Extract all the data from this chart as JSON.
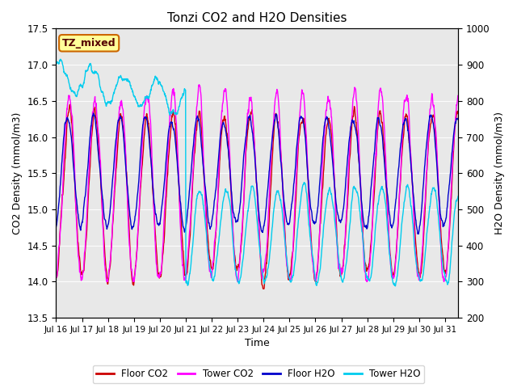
{
  "title": "Tonzi CO2 and H2O Densities",
  "xlabel": "Time",
  "ylabel_left": "CO2 Density (mmol/m3)",
  "ylabel_right": "H2O Density (mmol/m3)",
  "ylim_left": [
    13.5,
    17.5
  ],
  "ylim_right": [
    200,
    1000
  ],
  "yticks_left": [
    13.5,
    14.0,
    14.5,
    15.0,
    15.5,
    16.0,
    16.5,
    17.0,
    17.5
  ],
  "yticks_right": [
    200,
    300,
    400,
    500,
    600,
    700,
    800,
    900,
    1000
  ],
  "n_days": 15.5,
  "n_pts": 1488,
  "x_tick_days": [
    0,
    1,
    2,
    3,
    4,
    5,
    6,
    7,
    8,
    9,
    10,
    11,
    12,
    13,
    14,
    15
  ],
  "x_tick_labels": [
    "Jul 16",
    "Jul 17",
    "Jul 18",
    "Jul 19",
    "Jul 20",
    "Jul 21",
    "Jul 22",
    "Jul 23",
    "Jul 24",
    "Jul 25",
    "Jul 26",
    "Jul 27",
    "Jul 28",
    "Jul 29",
    "Jul 30",
    "Jul 31"
  ],
  "colors": {
    "floor_co2": "#cc0000",
    "tower_co2": "#ff00ff",
    "floor_h2o": "#0000cc",
    "tower_h2o": "#00ccee"
  },
  "legend_labels": [
    "Floor CO2",
    "Tower CO2",
    "Floor H2O",
    "Tower H2O"
  ],
  "annotation_text": "TZ_mixed",
  "annotation_bbox_facecolor": "#ffff99",
  "annotation_bbox_edgecolor": "#cc6600",
  "bg_color": "#e8e8e8",
  "line_width": 1.0,
  "figsize": [
    6.4,
    4.8
  ],
  "dpi": 100
}
